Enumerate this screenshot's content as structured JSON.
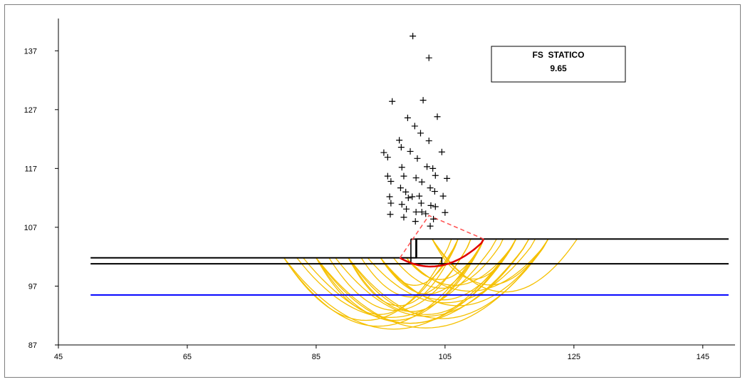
{
  "chart_data": {
    "type": "scatter",
    "xlim": [
      45,
      150
    ],
    "ylim": [
      87,
      142
    ],
    "x_ticks": [
      45,
      65,
      85,
      105,
      125,
      145
    ],
    "y_ticks": [
      87,
      97,
      107,
      117,
      127,
      137
    ],
    "grid": false,
    "legend_box": {
      "label": "FS  STATICO",
      "value": "9.65"
    },
    "colors": {
      "axis": "#000000",
      "profile": "#000000",
      "water": "#0000ff",
      "surfaces": "#f5c000",
      "critical": "#e00000",
      "critical_dash": "#ff5050",
      "centers": "#000000"
    },
    "profile": {
      "upper": [
        [
          50,
          101.8
        ],
        [
          100.5,
          101.8
        ],
        [
          100.5,
          105
        ],
        [
          149,
          105
        ]
      ],
      "lower": [
        [
          50,
          100.8
        ],
        [
          149,
          100.8
        ]
      ],
      "wall": [
        [
          99.7,
          105
        ],
        [
          100.6,
          105
        ],
        [
          100.6,
          101.8
        ],
        [
          104.5,
          101.8
        ],
        [
          104.5,
          100.8
        ],
        [
          99.7,
          100.8
        ],
        [
          99.7,
          105
        ]
      ]
    },
    "water_table": {
      "y": 95.5,
      "x": [
        50,
        149
      ]
    },
    "trial_surfaces": [
      {
        "x1": 80,
        "x2": 107,
        "ymin": 90.5
      },
      {
        "x1": 80,
        "x2": 111,
        "ymin": 89.5
      },
      {
        "x1": 80,
        "x2": 116,
        "ymin": 89
      },
      {
        "x1": 85,
        "x2": 106,
        "ymin": 91.5
      },
      {
        "x1": 85,
        "x2": 111,
        "ymin": 90.5
      },
      {
        "x1": 85,
        "x2": 116,
        "ymin": 90
      },
      {
        "x1": 85,
        "x2": 121,
        "ymin": 89.2
      },
      {
        "x1": 90,
        "x2": 107,
        "ymin": 93
      },
      {
        "x1": 90,
        "x2": 111,
        "ymin": 92
      },
      {
        "x1": 90,
        "x2": 116,
        "ymin": 91.5
      },
      {
        "x1": 90,
        "x2": 121,
        "ymin": 90.8
      },
      {
        "x1": 95,
        "x2": 107,
        "ymin": 96.5
      },
      {
        "x1": 95,
        "x2": 111,
        "ymin": 95
      },
      {
        "x1": 95,
        "x2": 116,
        "ymin": 94
      },
      {
        "x1": 95,
        "x2": 121,
        "ymin": 93
      },
      {
        "x1": 99,
        "x2": 111,
        "ymin": 97.5
      },
      {
        "x1": 99,
        "x2": 116,
        "ymin": 96.5
      },
      {
        "x1": 99,
        "x2": 121,
        "ymin": 95.5
      },
      {
        "x1": 103,
        "x2": 116,
        "ymin": 98.2
      },
      {
        "x1": 103,
        "x2": 121,
        "ymin": 97.2
      },
      {
        "x1": 103,
        "x2": 125.5,
        "ymin": 96
      },
      {
        "x1": 82,
        "x2": 113,
        "ymin": 91
      },
      {
        "x1": 88,
        "x2": 118,
        "ymin": 91.2
      },
      {
        "x1": 93,
        "x2": 119,
        "ymin": 93.5
      },
      {
        "x1": 97,
        "x2": 114,
        "ymin": 96
      },
      {
        "x1": 92,
        "x2": 109,
        "ymin": 94.5
      },
      {
        "x1": 87,
        "x2": 109,
        "ymin": 92.2
      },
      {
        "x1": 83,
        "x2": 118,
        "ymin": 90
      }
    ],
    "critical_surface": {
      "x1": 98,
      "x2": 111,
      "ymin": 99.8,
      "center": [
        102.5,
        109
      ]
    },
    "centers": [
      [
        100,
        139.5
      ],
      [
        102.5,
        135.8
      ],
      [
        96.8,
        128.4
      ],
      [
        101.6,
        128.6
      ],
      [
        99.2,
        125.6
      ],
      [
        103.8,
        125.8
      ],
      [
        100.3,
        124.2
      ],
      [
        101.2,
        123
      ],
      [
        97.9,
        121.8
      ],
      [
        102.5,
        121.7
      ],
      [
        98.2,
        120.6
      ],
      [
        99.6,
        119.9
      ],
      [
        95.5,
        119.7
      ],
      [
        104.5,
        119.8
      ],
      [
        96.1,
        118.9
      ],
      [
        100.7,
        118.7
      ],
      [
        102.2,
        117.3
      ],
      [
        98.3,
        117.2
      ],
      [
        103.1,
        117
      ],
      [
        96.1,
        115.7
      ],
      [
        98.6,
        115.7
      ],
      [
        100.5,
        115.4
      ],
      [
        103.5,
        115.8
      ],
      [
        105.3,
        115.3
      ],
      [
        96.6,
        114.8
      ],
      [
        101.4,
        114.7
      ],
      [
        98.1,
        113.7
      ],
      [
        102.7,
        113.7
      ],
      [
        103.4,
        113.1
      ],
      [
        98.9,
        113
      ],
      [
        96.4,
        112.2
      ],
      [
        99.3,
        112
      ],
      [
        99.9,
        112.2
      ],
      [
        101,
        112.3
      ],
      [
        104.7,
        112.3
      ],
      [
        96.6,
        111.1
      ],
      [
        101.3,
        111.1
      ],
      [
        98.3,
        110.9
      ],
      [
        102.8,
        110.7
      ],
      [
        99,
        110.1
      ],
      [
        103.5,
        110.5
      ],
      [
        100.5,
        109.6
      ],
      [
        101.4,
        109.6
      ],
      [
        96.5,
        109.2
      ],
      [
        102,
        109.3
      ],
      [
        105,
        109.5
      ],
      [
        98.6,
        108.7
      ],
      [
        100.4,
        108
      ],
      [
        103.2,
        108.4
      ],
      [
        102.7,
        107.2
      ]
    ]
  }
}
